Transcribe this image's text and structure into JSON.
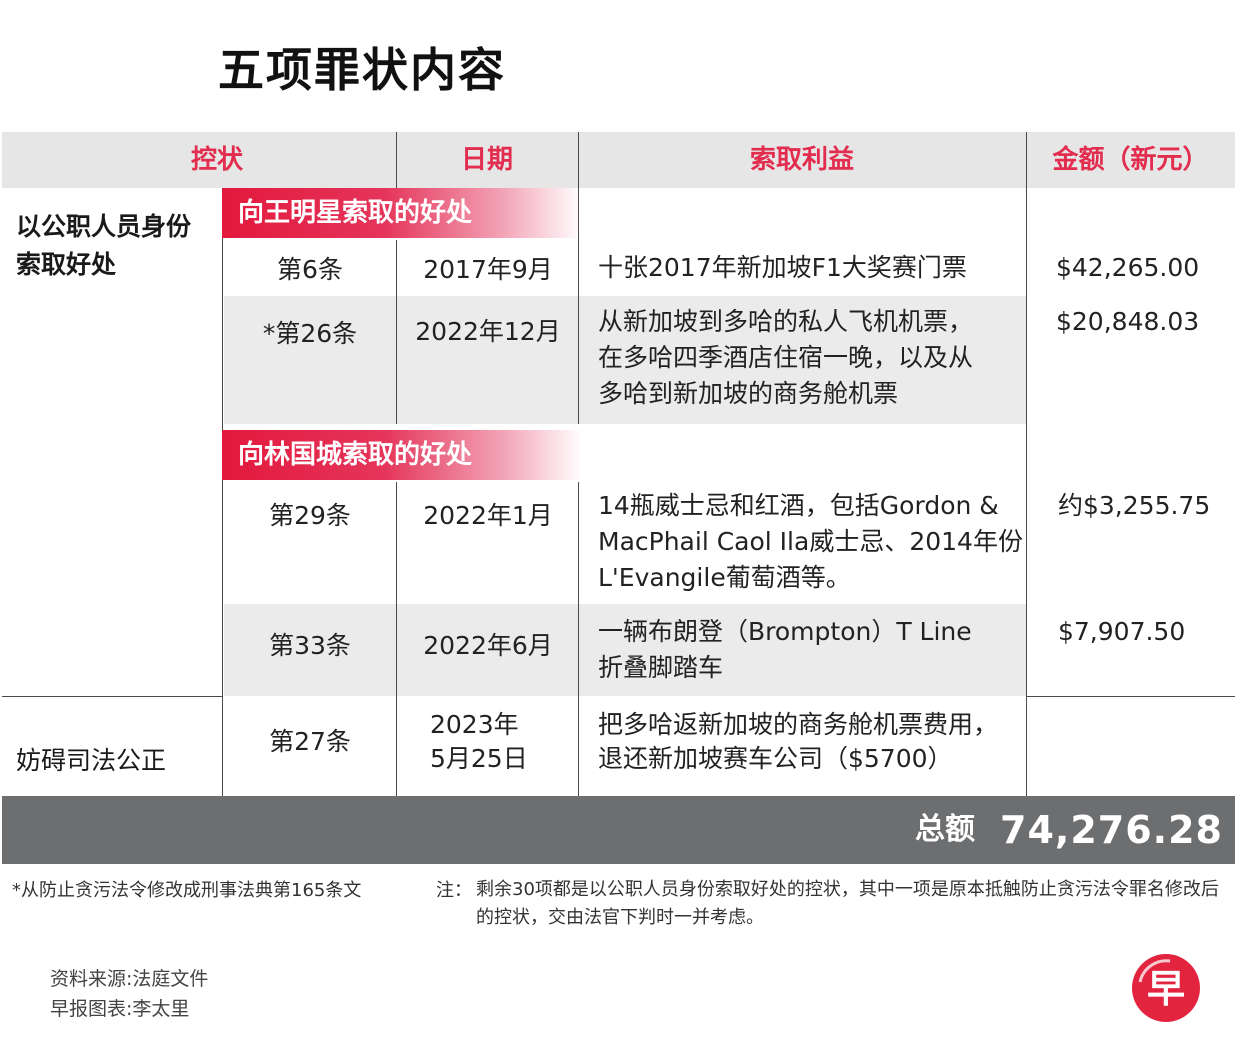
{
  "title": "五项罪状内容",
  "headers": {
    "charge": "控状",
    "date": "日期",
    "benefit": "索取利益",
    "amount": "金额（新元）"
  },
  "charge_types": {
    "first": "以公职人员身份\n索取好处",
    "second": "妨碍司法公正"
  },
  "groups": {
    "group1": "向王明星索取的好处",
    "group2": "向林国城索取的好处"
  },
  "rows": [
    {
      "charge": "第6条",
      "date": "2017年9月",
      "benefit": "十张2017年新加坡F1大奖赛门票",
      "amount": "$42,265.00"
    },
    {
      "charge": "*第26条",
      "date": "2022年12月",
      "benefit": "从新加坡到多哈的私人飞机机票，\n在多哈四季酒店住宿一晚，以及从\n多哈到新加坡的商务舱机票",
      "amount": "$20,848.03"
    },
    {
      "charge": "第29条",
      "date": "2022年1月",
      "benefit": "14瓶威士忌和红酒，包括Gordon &\nMacPhail Caol Ila威士忌、2014年份\nL'Evangile葡萄酒等。",
      "amount": "约$3,255.75"
    },
    {
      "charge": "第33条",
      "date": "2022年6月",
      "benefit": "一辆布朗登（Brompton）T Line\n折叠脚踏车",
      "amount": "$7,907.50"
    },
    {
      "charge": "第27条",
      "date": "2023年\n5月25日",
      "benefit": "把多哈返新加坡的商务舱机票费用，\n退还新加坡赛车公司（$5700）",
      "amount": ""
    }
  ],
  "total": {
    "label": "总额",
    "value": "74,276.28"
  },
  "footnote": "*从防止贪污法令修改成刑事法典第165条文",
  "note": {
    "label": "注：",
    "text": "剩余30项都是以公职人员身份索取好处的控状，其中一项是原本抵触防止贪污法令罪名修改后的控状，交由法官下判时一并考虑。"
  },
  "source": {
    "line1": "资料来源:法庭文件",
    "line2": "早报图表:李太里"
  },
  "logo_char": "早",
  "colors": {
    "accent": "#e22d4f",
    "header_bg": "#e6e6e6",
    "band_bg": "#ebebeb",
    "total_bg": "#6d6e70"
  }
}
